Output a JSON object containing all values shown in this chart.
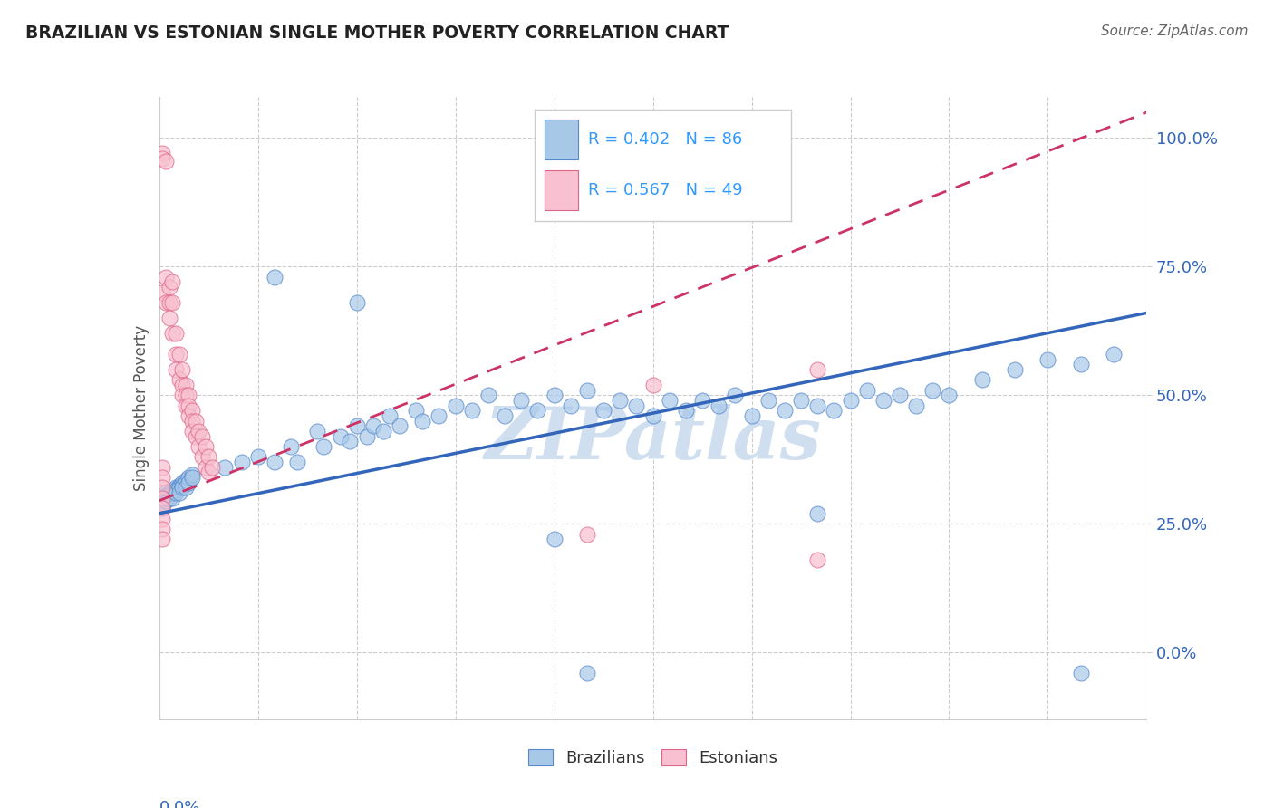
{
  "title": "BRAZILIAN VS ESTONIAN SINGLE MOTHER POVERTY CORRELATION CHART",
  "source": "Source: ZipAtlas.com",
  "ylabel": "Single Mother Poverty",
  "yticks": [
    0.0,
    0.25,
    0.5,
    0.75,
    1.0
  ],
  "ytick_labels": [
    "0.0%",
    "25.0%",
    "50.0%",
    "75.0%",
    "100.0%"
  ],
  "xlim": [
    0.0,
    0.3
  ],
  "ylim": [
    -0.13,
    1.08
  ],
  "brazil_R": 0.402,
  "brazil_N": 86,
  "estonia_R": 0.567,
  "estonia_N": 49,
  "brazil_color": "#a8c8e8",
  "brazil_edge_color": "#5588cc",
  "brazil_line_color": "#3366bb",
  "estonia_color": "#f8c0d0",
  "estonia_edge_color": "#dd6688",
  "estonia_line_color": "#cc3366",
  "watermark": "ZIPatlas",
  "watermark_color": "#d0dff0",
  "legend_text_color": "#3399ff",
  "title_color": "#222222",
  "brazil_line_x": [
    0.0,
    0.3
  ],
  "brazil_line_y": [
    0.27,
    0.66
  ],
  "estonia_line_x": [
    0.0,
    0.3
  ],
  "estonia_line_y": [
    0.295,
    1.05
  ],
  "brazil_scatter": [
    [
      0.001,
      0.3
    ],
    [
      0.001,
      0.295
    ],
    [
      0.001,
      0.285
    ],
    [
      0.001,
      0.28
    ],
    [
      0.002,
      0.31
    ],
    [
      0.002,
      0.305
    ],
    [
      0.002,
      0.3
    ],
    [
      0.002,
      0.295
    ],
    [
      0.003,
      0.31
    ],
    [
      0.003,
      0.305
    ],
    [
      0.003,
      0.3
    ],
    [
      0.004,
      0.315
    ],
    [
      0.004,
      0.31
    ],
    [
      0.004,
      0.3
    ],
    [
      0.005,
      0.32
    ],
    [
      0.005,
      0.315
    ],
    [
      0.005,
      0.31
    ],
    [
      0.006,
      0.325
    ],
    [
      0.006,
      0.32
    ],
    [
      0.006,
      0.31
    ],
    [
      0.007,
      0.33
    ],
    [
      0.007,
      0.325
    ],
    [
      0.007,
      0.32
    ],
    [
      0.008,
      0.335
    ],
    [
      0.008,
      0.33
    ],
    [
      0.008,
      0.32
    ],
    [
      0.009,
      0.34
    ],
    [
      0.009,
      0.33
    ],
    [
      0.01,
      0.345
    ],
    [
      0.01,
      0.34
    ],
    [
      0.02,
      0.36
    ],
    [
      0.025,
      0.37
    ],
    [
      0.03,
      0.38
    ],
    [
      0.035,
      0.37
    ],
    [
      0.04,
      0.4
    ],
    [
      0.042,
      0.37
    ],
    [
      0.048,
      0.43
    ],
    [
      0.05,
      0.4
    ],
    [
      0.055,
      0.42
    ],
    [
      0.058,
      0.41
    ],
    [
      0.06,
      0.44
    ],
    [
      0.063,
      0.42
    ],
    [
      0.065,
      0.44
    ],
    [
      0.068,
      0.43
    ],
    [
      0.07,
      0.46
    ],
    [
      0.073,
      0.44
    ],
    [
      0.078,
      0.47
    ],
    [
      0.08,
      0.45
    ],
    [
      0.085,
      0.46
    ],
    [
      0.09,
      0.48
    ],
    [
      0.095,
      0.47
    ],
    [
      0.1,
      0.5
    ],
    [
      0.105,
      0.46
    ],
    [
      0.11,
      0.49
    ],
    [
      0.115,
      0.47
    ],
    [
      0.12,
      0.5
    ],
    [
      0.125,
      0.48
    ],
    [
      0.13,
      0.51
    ],
    [
      0.135,
      0.47
    ],
    [
      0.14,
      0.49
    ],
    [
      0.145,
      0.48
    ],
    [
      0.15,
      0.46
    ],
    [
      0.155,
      0.49
    ],
    [
      0.16,
      0.47
    ],
    [
      0.165,
      0.49
    ],
    [
      0.17,
      0.48
    ],
    [
      0.175,
      0.5
    ],
    [
      0.18,
      0.46
    ],
    [
      0.185,
      0.49
    ],
    [
      0.19,
      0.47
    ],
    [
      0.195,
      0.49
    ],
    [
      0.2,
      0.48
    ],
    [
      0.205,
      0.47
    ],
    [
      0.21,
      0.49
    ],
    [
      0.215,
      0.51
    ],
    [
      0.22,
      0.49
    ],
    [
      0.225,
      0.5
    ],
    [
      0.23,
      0.48
    ],
    [
      0.235,
      0.51
    ],
    [
      0.24,
      0.5
    ],
    [
      0.25,
      0.53
    ],
    [
      0.26,
      0.55
    ],
    [
      0.27,
      0.57
    ],
    [
      0.28,
      0.56
    ],
    [
      0.29,
      0.58
    ],
    [
      0.06,
      0.68
    ],
    [
      0.035,
      0.73
    ],
    [
      0.12,
      0.22
    ],
    [
      0.2,
      0.27
    ],
    [
      0.13,
      -0.04
    ],
    [
      0.28,
      -0.04
    ]
  ],
  "estonia_scatter": [
    [
      0.001,
      0.97
    ],
    [
      0.001,
      0.96
    ],
    [
      0.002,
      0.955
    ],
    [
      0.001,
      0.7
    ],
    [
      0.002,
      0.73
    ],
    [
      0.002,
      0.68
    ],
    [
      0.003,
      0.71
    ],
    [
      0.003,
      0.68
    ],
    [
      0.003,
      0.65
    ],
    [
      0.004,
      0.72
    ],
    [
      0.004,
      0.68
    ],
    [
      0.004,
      0.62
    ],
    [
      0.005,
      0.62
    ],
    [
      0.005,
      0.58
    ],
    [
      0.005,
      0.55
    ],
    [
      0.006,
      0.58
    ],
    [
      0.006,
      0.53
    ],
    [
      0.007,
      0.55
    ],
    [
      0.007,
      0.52
    ],
    [
      0.007,
      0.5
    ],
    [
      0.008,
      0.52
    ],
    [
      0.008,
      0.5
    ],
    [
      0.008,
      0.48
    ],
    [
      0.009,
      0.5
    ],
    [
      0.009,
      0.48
    ],
    [
      0.009,
      0.46
    ],
    [
      0.01,
      0.47
    ],
    [
      0.01,
      0.45
    ],
    [
      0.01,
      0.43
    ],
    [
      0.011,
      0.45
    ],
    [
      0.011,
      0.42
    ],
    [
      0.012,
      0.43
    ],
    [
      0.012,
      0.4
    ],
    [
      0.013,
      0.42
    ],
    [
      0.013,
      0.38
    ],
    [
      0.014,
      0.4
    ],
    [
      0.014,
      0.36
    ],
    [
      0.015,
      0.38
    ],
    [
      0.015,
      0.35
    ],
    [
      0.016,
      0.36
    ],
    [
      0.001,
      0.36
    ],
    [
      0.001,
      0.34
    ],
    [
      0.001,
      0.32
    ],
    [
      0.001,
      0.3
    ],
    [
      0.001,
      0.28
    ],
    [
      0.001,
      0.26
    ],
    [
      0.001,
      0.24
    ],
    [
      0.001,
      0.22
    ],
    [
      0.15,
      0.52
    ],
    [
      0.2,
      0.55
    ],
    [
      0.13,
      0.23
    ],
    [
      0.2,
      0.18
    ]
  ]
}
